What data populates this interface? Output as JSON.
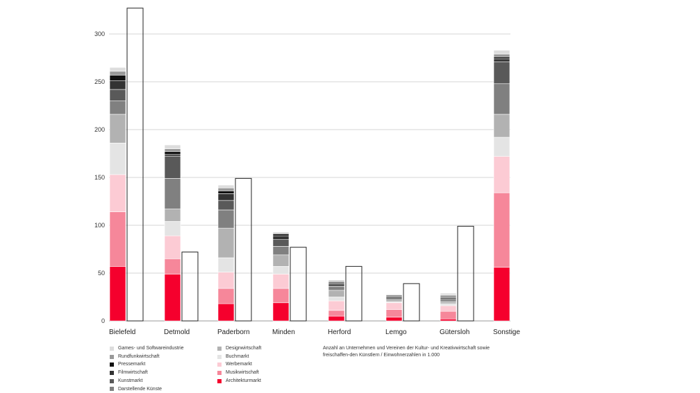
{
  "chart_data": {
    "type": "bar",
    "stacked": true,
    "ylim": [
      0,
      330
    ],
    "yticks": [
      0,
      50,
      100,
      150,
      200,
      250,
      300
    ],
    "grid": true,
    "legend_placement": "bottom-left",
    "categories": [
      "Bielefeld",
      "Detmold",
      "Paderborn",
      "Minden",
      "Herford",
      "Lemgo",
      "Gütersloh",
      "Sonstige"
    ],
    "series": [
      {
        "name": "Architekturmarkt",
        "color": "#f5002d",
        "values": [
          57,
          49,
          18,
          19,
          5,
          4,
          2,
          56
        ]
      },
      {
        "name": "Musikwirtschaft",
        "color": "#f6879a",
        "values": [
          57,
          16,
          16,
          15,
          6,
          8,
          8,
          78
        ]
      },
      {
        "name": "Werbemarkt",
        "color": "#fccbd4",
        "values": [
          39,
          24,
          17,
          15,
          10,
          7,
          6,
          38
        ]
      },
      {
        "name": "Buchmarkt",
        "color": "#e4e4e4",
        "values": [
          33,
          15,
          15,
          8,
          4,
          1,
          2,
          20
        ]
      },
      {
        "name": "Designwirtschaft",
        "color": "#b2b2b2",
        "values": [
          30,
          13,
          31,
          12,
          7,
          2,
          2,
          24
        ]
      },
      {
        "name": "Darstellende Künste",
        "color": "#808080",
        "values": [
          14,
          32,
          19,
          9,
          4,
          4,
          2,
          32
        ]
      },
      {
        "name": "Kunstmarkt",
        "color": "#595959",
        "values": [
          12,
          23,
          10,
          7,
          3,
          1,
          2,
          23
        ]
      },
      {
        "name": "Filmwirtschaft",
        "color": "#333333",
        "values": [
          9,
          2,
          7,
          4,
          1,
          0,
          1,
          3
        ]
      },
      {
        "name": "Pressemarkt",
        "color": "#111111",
        "values": [
          6,
          3,
          3,
          2,
          1,
          0,
          1,
          2
        ]
      },
      {
        "name": "Rundfunkwirtschaft",
        "color": "#999999",
        "values": [
          4,
          3,
          3,
          1,
          1,
          0,
          1,
          3
        ]
      },
      {
        "name": "Games- und Softwareindustrie",
        "color": "#dddddd",
        "values": [
          4,
          4,
          3,
          1,
          1,
          1,
          2,
          4
        ]
      }
    ],
    "comparison": {
      "style": "outline",
      "values": [
        327,
        72,
        149,
        77,
        57,
        39,
        99,
        null
      ]
    }
  },
  "legend_left": [
    "Games- und Softwareindustrie",
    "Rundfunkwirtschaft",
    "Pressemarkt",
    "Filmwirtschaft",
    "Kunstmarkt",
    "Darstellende Künste"
  ],
  "legend_right": [
    "Designwirtschaft",
    "Buchmarkt",
    "Werbemarkt",
    "Musikwirtschaft",
    "Architekturmarkt"
  ],
  "legend_colors": {
    "Games- und Softwareindustrie": "#dddddd",
    "Rundfunkwirtschaft": "#999999",
    "Pressemarkt": "#111111",
    "Filmwirtschaft": "#333333",
    "Kunstmarkt": "#595959",
    "Darstellende Künste": "#808080",
    "Designwirtschaft": "#b2b2b2",
    "Buchmarkt": "#e4e4e4",
    "Werbemarkt": "#fccbd4",
    "Musikwirtschaft": "#f6879a",
    "Architekturmarkt": "#f5002d"
  },
  "note": "Anzahl an Unternehmen und Vereinen der Kultur- und Kreativwirtschaft sowie freischaffen-den Künstlern / Einwohnerzahlen in 1.000"
}
